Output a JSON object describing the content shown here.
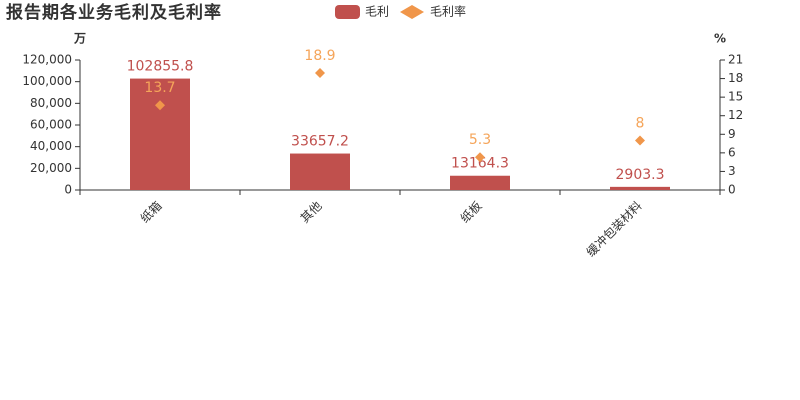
{
  "chart_data": {
    "type": "bar",
    "title": "报告期各业务毛利及毛利率",
    "y_label": "万",
    "y2_label": "%",
    "categories": [
      "纸箱",
      "其他",
      "纸板",
      "缓冲包装材料"
    ],
    "series": [
      {
        "name": "毛利",
        "type": "bar",
        "color": "#c0504d",
        "values": [
          102855.8,
          33657.2,
          13164.3,
          2903.3
        ]
      },
      {
        "name": "毛利率",
        "type": "scatter",
        "axis": "y2",
        "color": "#f0964a",
        "label_color": "#f5a55a",
        "values": [
          13.7,
          18.9,
          5.3,
          8
        ]
      }
    ],
    "ylim": [
      0,
      120000
    ],
    "yticks": [
      0,
      {
        "value": 20000,
        "label": "20,000"
      },
      {
        "value": 40000,
        "label": "40,000"
      },
      {
        "value": 60000,
        "label": "60,000"
      },
      {
        "value": 80000,
        "label": "80,000"
      },
      {
        "value": 100000,
        "label": "100,000"
      },
      {
        "value": 120000,
        "label": "120,000"
      }
    ],
    "y2lim": [
      0,
      21
    ],
    "y2ticks": [
      0,
      3,
      6,
      9,
      12,
      15,
      18,
      21
    ]
  }
}
